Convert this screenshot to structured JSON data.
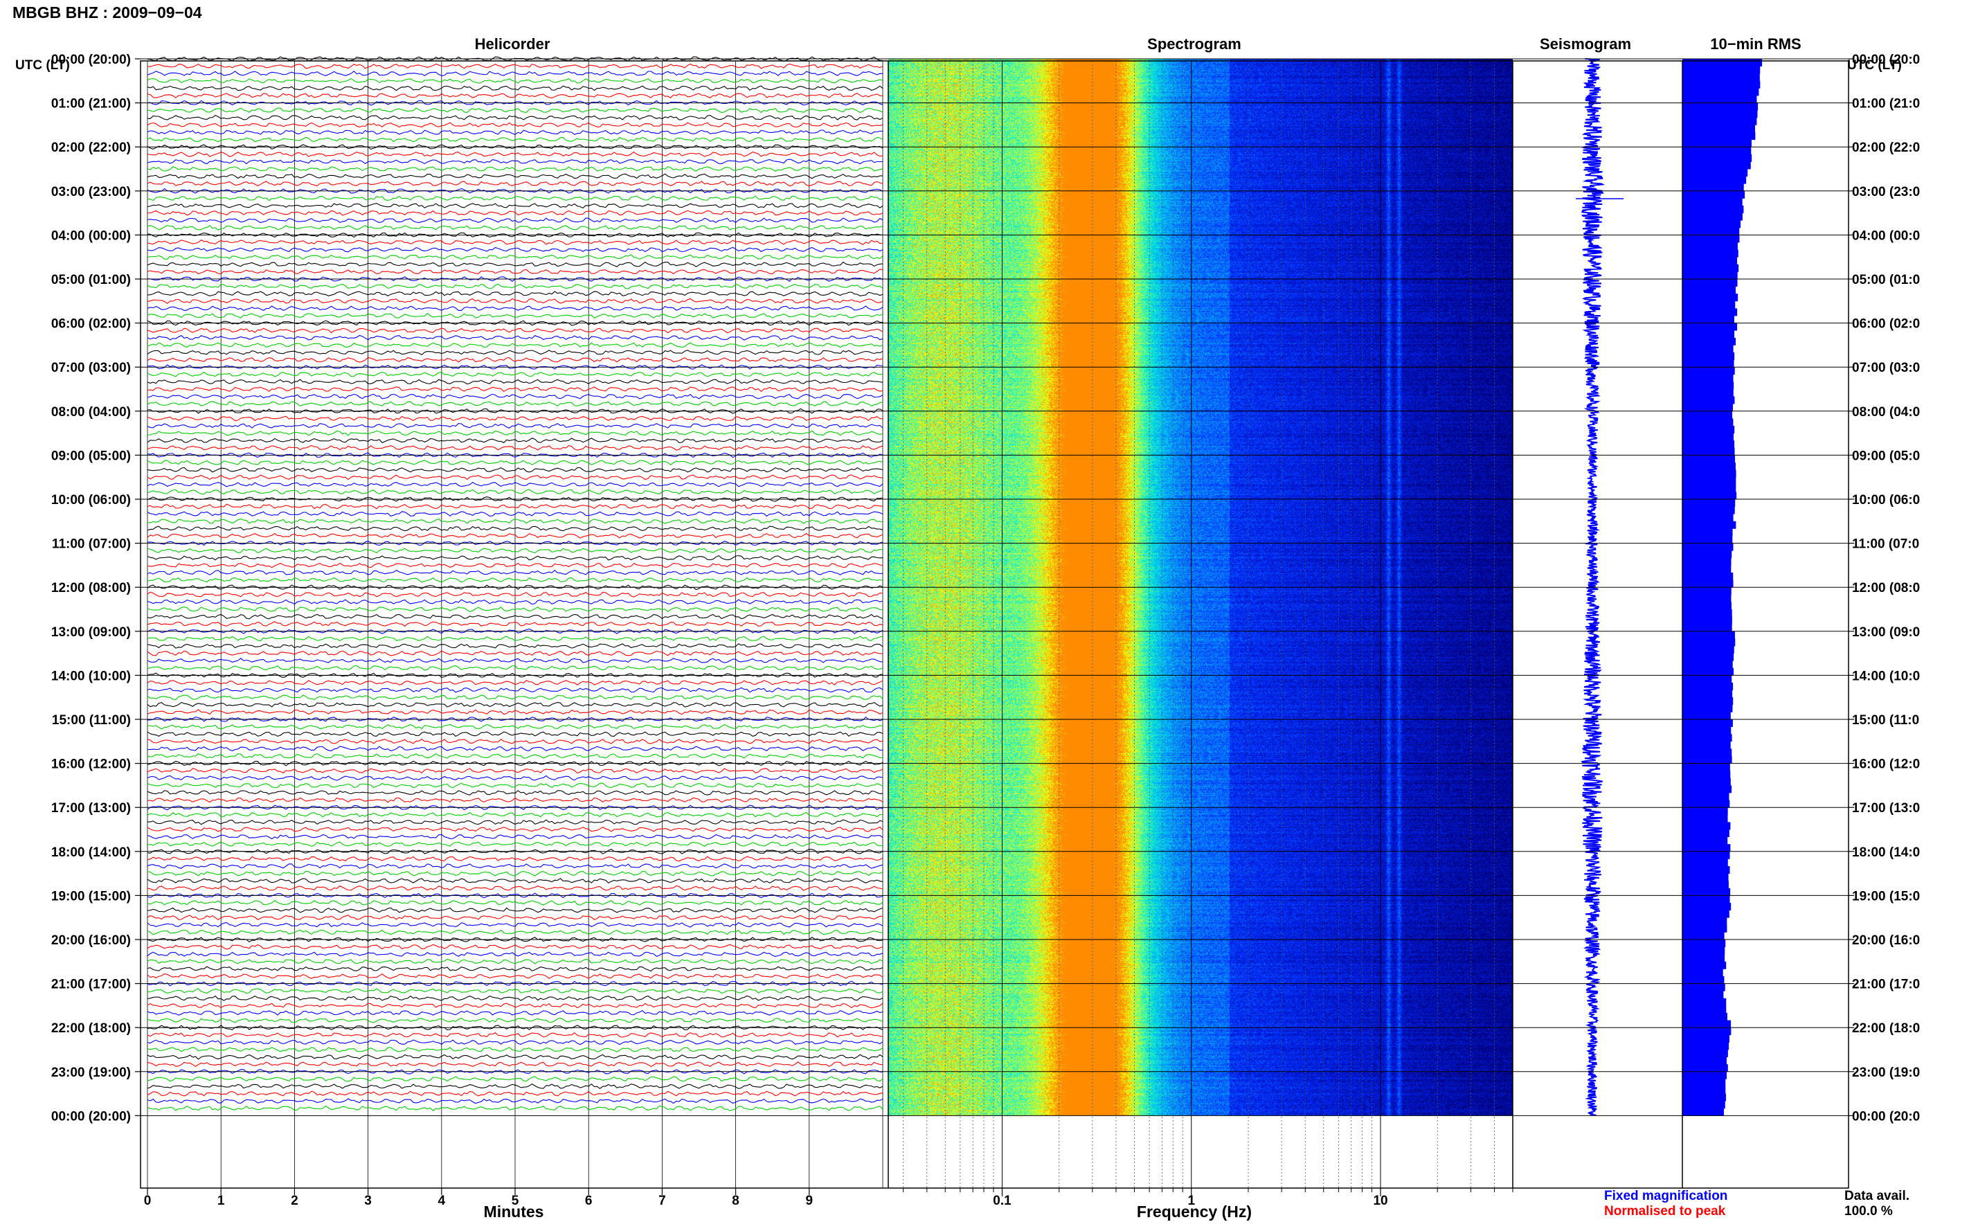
{
  "header": {
    "title": "MBGB BHZ : 2009−09−04"
  },
  "panels": {
    "helicorder": "Helicorder",
    "spectrogram": "Spectrogram",
    "seismogram": "Seismogram",
    "rms": "10−min RMS"
  },
  "axes": {
    "utc_label": "UTC (LT)",
    "minutes_label": "Minutes",
    "frequency_label": "Frequency (Hz)",
    "minute_ticks": [
      "0",
      "1",
      "2",
      "3",
      "4",
      "5",
      "6",
      "7",
      "8",
      "9"
    ],
    "freq_ticks": [
      "0.1",
      "1",
      "10"
    ]
  },
  "footer": {
    "fixed_magnification": "Fixed magnification",
    "normalised_to_peak": "Normalised to peak",
    "data_avail_label": "Data avail.",
    "data_avail_value": "100.0 %"
  },
  "colors": {
    "trace_cycle": [
      "#000000",
      "#ff0000",
      "#0000ff",
      "#00cc00"
    ],
    "spectrogram_low": "#00007a",
    "spectrogram_high": "#ffff00",
    "seismogram": "#0000ff",
    "rms_bar": "#0000ff",
    "fixed_text": "#0000ff",
    "normalised_text": "#ff0000"
  },
  "chart_data": [
    {
      "type": "line",
      "panel": "helicorder",
      "title": "Helicorder",
      "xlabel": "Minutes",
      "xlim": [
        0,
        10
      ],
      "hour_labels_left": [
        "00:00 (20:00)",
        "01:00 (21:00)",
        "02:00 (22:00)",
        "03:00 (23:00)",
        "04:00 (00:00)",
        "05:00 (01:00)",
        "06:00 (02:00)",
        "07:00 (03:00)",
        "08:00 (04:00)",
        "09:00 (05:00)",
        "10:00 (06:00)",
        "11:00 (07:00)",
        "12:00 (08:00)",
        "13:00 (09:00)",
        "14:00 (10:00)",
        "15:00 (11:00)",
        "16:00 (12:00)",
        "17:00 (13:00)",
        "18:00 (14:00)",
        "19:00 (15:00)",
        "20:00 (16:00)",
        "21:00 (17:00)",
        "22:00 (18:00)",
        "23:00 (19:00)",
        "00:00 (20:00)"
      ],
      "hour_labels_right": [
        "00:00 (20:0",
        "01:00 (21:0",
        "02:00 (22:0",
        "03:00 (23:0",
        "04:00 (00:0",
        "05:00 (01:0",
        "06:00 (02:0",
        "07:00 (03:0",
        "08:00 (04:0",
        "09:00 (05:0",
        "10:00 (06:0",
        "11:00 (07:0",
        "12:00 (08:0",
        "13:00 (09:0",
        "14:00 (10:0",
        "15:00 (11:0",
        "16:00 (12:0",
        "17:00 (13:0",
        "18:00 (14:0",
        "19:00 (15:0",
        "20:00 (16:0",
        "21:00 (17:0",
        "22:00 (18:0",
        "23:00 (19:0",
        "00:00 (20:0"
      ],
      "traces_per_hour": 6,
      "trace_minutes": 10
    },
    {
      "type": "heatmap",
      "panel": "spectrogram",
      "title": "Spectrogram",
      "xlabel": "Frequency (Hz)",
      "xscale": "log",
      "xlim": [
        0.025,
        50
      ],
      "x_ticks": [
        0.1,
        1,
        10
      ],
      "peak_band_hz": 0.3,
      "high_freq_lines_hz": [
        11,
        12.5
      ]
    },
    {
      "type": "line",
      "panel": "seismogram",
      "title": "Seismogram",
      "orientation": "vertical",
      "duration_hours": 24
    },
    {
      "type": "bar",
      "panel": "10-min RMS",
      "title": "10−min RMS",
      "orientation": "horizontal",
      "bin_minutes": 10,
      "hourly_relative_rms": [
        0.9,
        0.86,
        0.8,
        0.71,
        0.65,
        0.63,
        0.61,
        0.59,
        0.58,
        0.6,
        0.61,
        0.58,
        0.57,
        0.59,
        0.58,
        0.56,
        0.55,
        0.54,
        0.53,
        0.55,
        0.49,
        0.48,
        0.55,
        0.5,
        0.48
      ]
    }
  ]
}
